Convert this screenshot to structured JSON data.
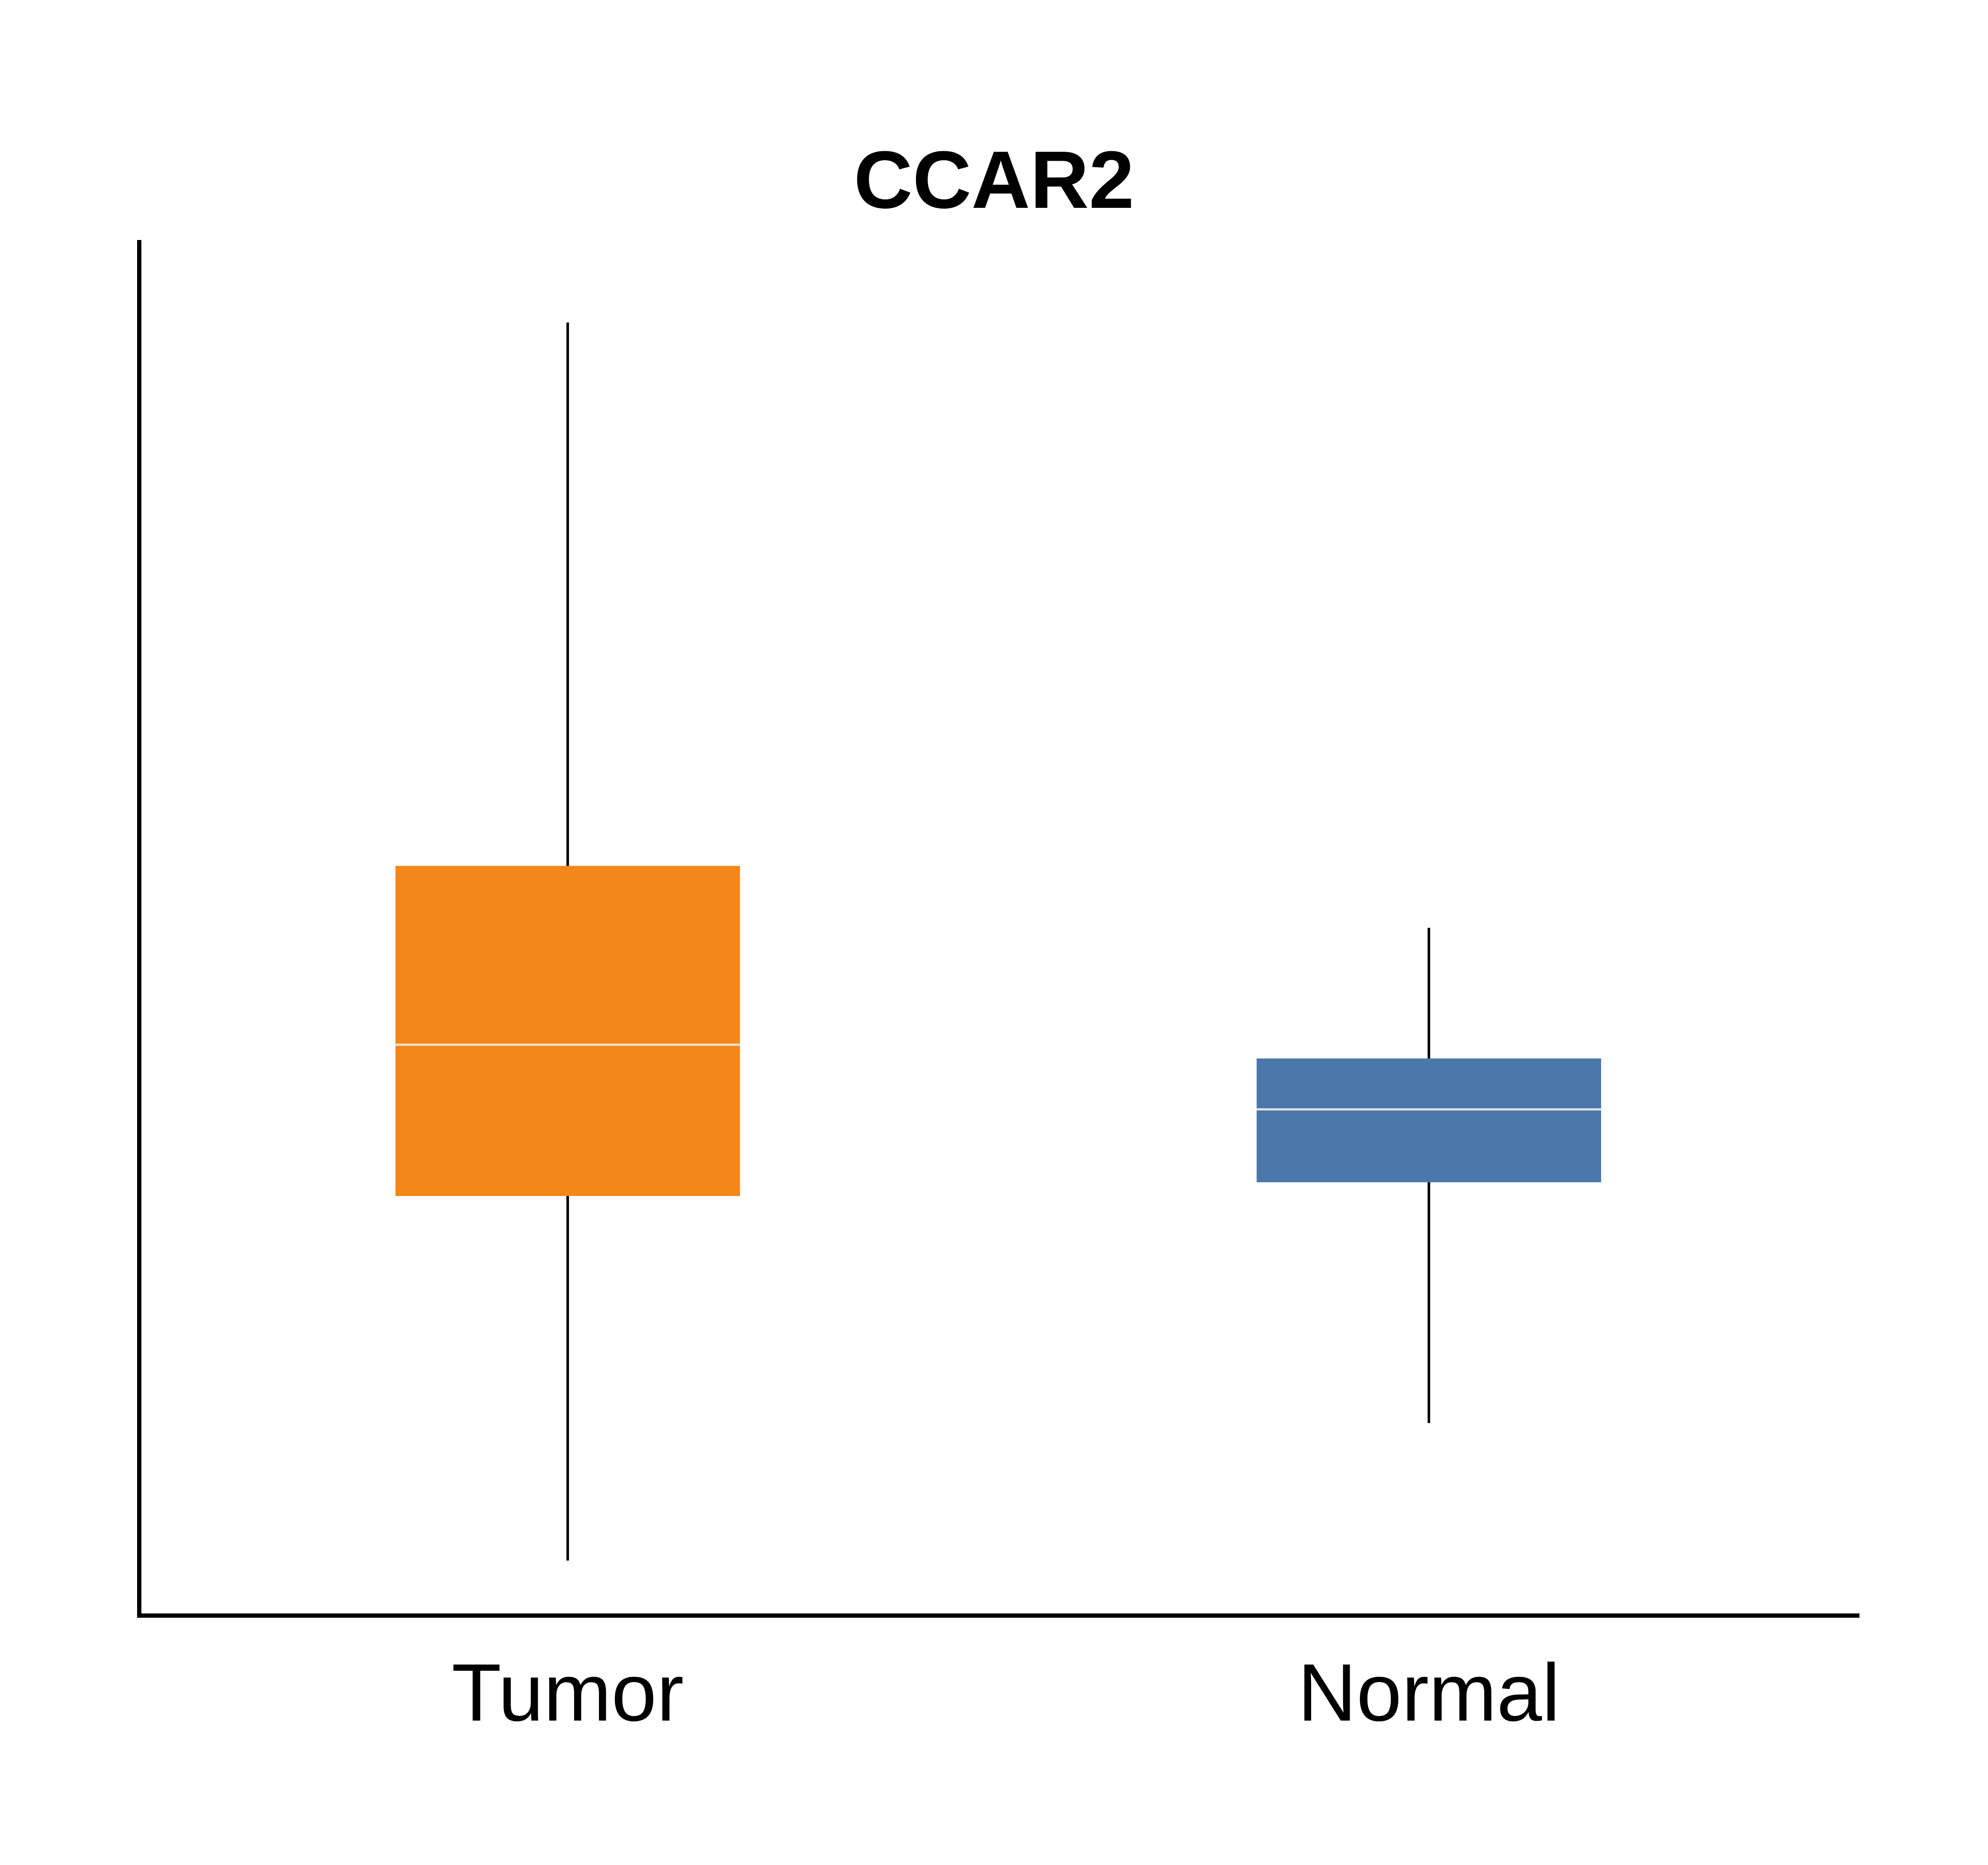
{
  "chart_data": {
    "type": "box",
    "title": "CCAR2",
    "xlabel": "",
    "ylabel": "",
    "ylim": [
      0,
      100
    ],
    "grid": false,
    "legend": "none",
    "categories": [
      "Tumor",
      "Normal"
    ],
    "boxes": [
      {
        "category": "Tumor",
        "whisker_low": 4,
        "q1": 30.5,
        "median": 41.5,
        "q3": 54.5,
        "whisker_high": 94,
        "color": "#F5861A"
      },
      {
        "category": "Normal",
        "whisker_low": 14,
        "q1": 31.5,
        "median": 36.8,
        "q3": 40.5,
        "whisker_high": 50,
        "color": "#4C77AA"
      }
    ]
  }
}
